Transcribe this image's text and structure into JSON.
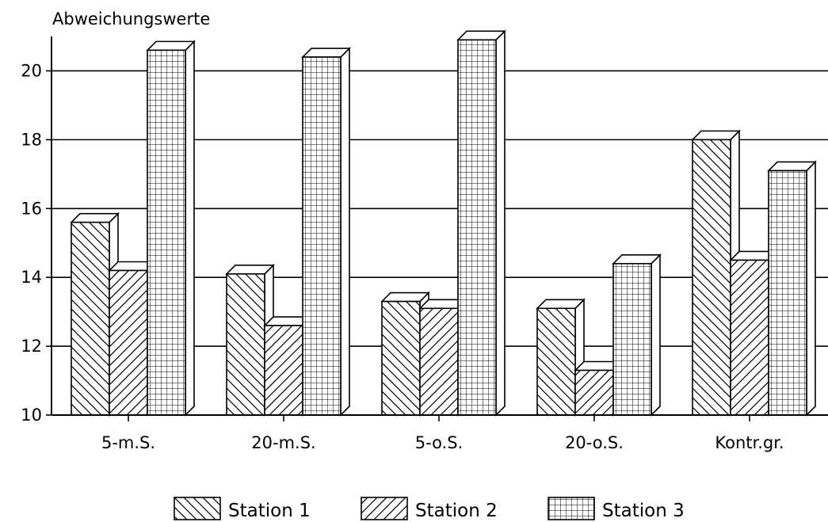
{
  "chart_data": {
    "type": "bar",
    "title": "",
    "ylabel": "Abweichungswerte",
    "xlabel": "",
    "ylim": [
      10,
      21
    ],
    "yticks": [
      10,
      12,
      14,
      16,
      18,
      20
    ],
    "grid": true,
    "style": "3d-bar",
    "legend_position": "bottom",
    "categories": [
      "5-m.S.",
      "20-m.S.",
      "5-o.S.",
      "20-o.S.",
      "Kontr.gr."
    ],
    "series": [
      {
        "name": "Station 1",
        "pattern": "diagonal-down",
        "values": [
          15.6,
          14.1,
          13.3,
          13.1,
          18.0
        ]
      },
      {
        "name": "Station 2",
        "pattern": "diagonal-up",
        "values": [
          14.2,
          12.6,
          13.1,
          11.3,
          14.5
        ]
      },
      {
        "name": "Station 3",
        "pattern": "grid",
        "values": [
          20.6,
          20.4,
          20.9,
          14.4,
          17.1
        ]
      }
    ]
  }
}
